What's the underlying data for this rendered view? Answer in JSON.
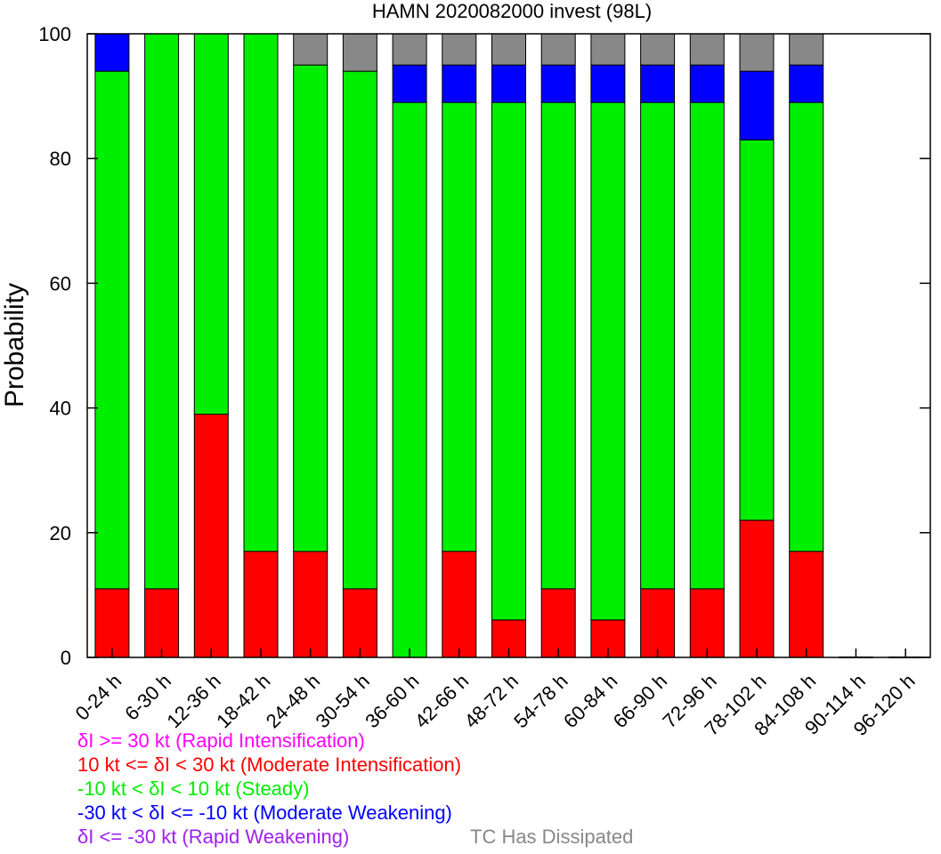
{
  "chart_data": {
    "type": "bar",
    "stacked": true,
    "title": "HAMN 2020082000 invest (98L)",
    "xlabel": "",
    "ylabel": "Probability",
    "ylim": [
      0,
      100
    ],
    "yticks": [
      0,
      20,
      40,
      60,
      80,
      100
    ],
    "grid": false,
    "categories": [
      "0-24 h",
      "6-30 h",
      "12-36 h",
      "18-42 h",
      "24-48 h",
      "30-54 h",
      "36-60 h",
      "42-66 h",
      "48-72 h",
      "54-78 h",
      "60-84 h",
      "66-90 h",
      "72-96 h",
      "78-102 h",
      "84-108 h",
      "90-114 h",
      "96-120 h"
    ],
    "series": [
      {
        "key": "ri",
        "color": "#ff00ff",
        "values": [
          0,
          0,
          0,
          0,
          0,
          0,
          0,
          0,
          0,
          0,
          0,
          0,
          0,
          0,
          0,
          0,
          0
        ]
      },
      {
        "key": "mi",
        "color": "#ff0000",
        "values": [
          11,
          11,
          39,
          17,
          17,
          11,
          0,
          17,
          6,
          11,
          6,
          11,
          11,
          22,
          17,
          0,
          0
        ]
      },
      {
        "key": "steady",
        "color": "#00ee00",
        "values": [
          83,
          89,
          61,
          83,
          78,
          83,
          89,
          72,
          83,
          78,
          83,
          78,
          78,
          61,
          72,
          0,
          0
        ]
      },
      {
        "key": "mw",
        "color": "#0000ff",
        "values": [
          6,
          0,
          0,
          0,
          0,
          0,
          6,
          6,
          6,
          6,
          6,
          6,
          6,
          11,
          6,
          0,
          0
        ]
      },
      {
        "key": "rw",
        "color": "#a020f0",
        "values": [
          0,
          0,
          0,
          0,
          0,
          0,
          0,
          0,
          0,
          0,
          0,
          0,
          0,
          0,
          0,
          0,
          0
        ]
      },
      {
        "key": "dissipated",
        "color": "#888888",
        "values": [
          0,
          0,
          0,
          0,
          5,
          6,
          5,
          5,
          5,
          5,
          5,
          5,
          5,
          6,
          5,
          0,
          0
        ]
      }
    ]
  },
  "legend": {
    "ri": {
      "label": "δI >= 30 kt (Rapid Intensification)",
      "color": "#ff00ff"
    },
    "mi": {
      "label": "10 kt <= δI < 30 kt (Moderate Intensification)",
      "color": "#ff0000"
    },
    "steady": {
      "label": "-10 kt < δI < 10 kt (Steady)",
      "color": "#00ee00"
    },
    "mw": {
      "label": "-30 kt < δI <= -10 kt (Moderate Weakening)",
      "color": "#0000ff"
    },
    "rw": {
      "label": "δI <= -30 kt (Rapid Weakening)",
      "color": "#a020f0"
    },
    "dissipated": {
      "label": "TC Has Dissipated",
      "color": "#888888"
    }
  }
}
